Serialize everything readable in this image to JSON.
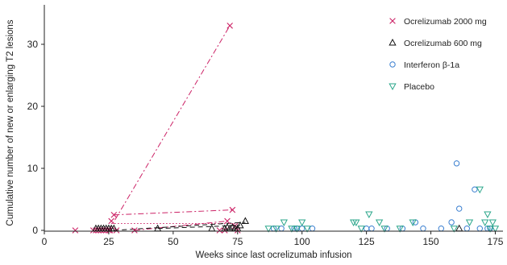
{
  "chart_data": {
    "type": "scatter",
    "title": "",
    "xlabel": "Weeks since last ocrelizumab infusion",
    "ylabel": "Cumulative number of new or enlarging T2 lesions",
    "xlim": [
      0,
      180
    ],
    "ylim": [
      0,
      34
    ],
    "xticks": [
      0,
      25,
      50,
      75,
      100,
      125,
      150,
      175
    ],
    "yticks": [
      0,
      10,
      20,
      30
    ],
    "x_tick_labels": [
      "0",
      "25",
      "50",
      "75",
      "100",
      "125",
      "150",
      "175"
    ],
    "y_tick_labels": [
      "0",
      "10",
      "20",
      "30"
    ],
    "grid": false,
    "legend_position": "top-right",
    "colors": {
      "ocr2000": "#cc2266",
      "ocr600": "#111111",
      "ifn": "#3a7fd0",
      "placebo": "#2aa68a"
    },
    "series": [
      {
        "name": "Ocrelizumab 2000 mg",
        "key": "ocr2000",
        "marker": "x",
        "points": [
          {
            "x": 12,
            "y": 0
          },
          {
            "x": 19,
            "y": 0
          },
          {
            "x": 20,
            "y": 0
          },
          {
            "x": 21,
            "y": 0
          },
          {
            "x": 22,
            "y": 0
          },
          {
            "x": 23,
            "y": 0
          },
          {
            "x": 24,
            "y": 0
          },
          {
            "x": 25,
            "y": 0
          },
          {
            "x": 25.5,
            "y": 0
          },
          {
            "x": 26,
            "y": 1.5
          },
          {
            "x": 27,
            "y": 2.5
          },
          {
            "x": 28,
            "y": 0
          },
          {
            "x": 35,
            "y": 0
          },
          {
            "x": 68,
            "y": 0
          },
          {
            "x": 70,
            "y": 0
          },
          {
            "x": 71,
            "y": 1.5
          },
          {
            "x": 72,
            "y": 33
          },
          {
            "x": 73,
            "y": 3.3
          },
          {
            "x": 74,
            "y": 0.7
          },
          {
            "x": 75,
            "y": 0
          }
        ],
        "lines": [
          {
            "style": "dashdot",
            "points": [
              {
                "x": 25,
                "y": 0
              },
              {
                "x": 72,
                "y": 33
              }
            ]
          },
          {
            "style": "dashdot",
            "points": [
              {
                "x": 27,
                "y": 2.5
              },
              {
                "x": 73,
                "y": 3.3
              }
            ]
          },
          {
            "style": "dotted",
            "points": [
              {
                "x": 26,
                "y": 1.1
              },
              {
                "x": 74,
                "y": 1.1
              }
            ]
          },
          {
            "style": "dashdot",
            "points": [
              {
                "x": 35,
                "y": 0
              },
              {
                "x": 71,
                "y": 1.5
              }
            ]
          }
        ]
      },
      {
        "name": "Ocrelizumab 600 mg",
        "key": "ocr600",
        "marker": "triangle-up",
        "points": [
          {
            "x": 20,
            "y": 0.3
          },
          {
            "x": 21,
            "y": 0.3
          },
          {
            "x": 22,
            "y": 0.3
          },
          {
            "x": 23,
            "y": 0.3
          },
          {
            "x": 24,
            "y": 0.3
          },
          {
            "x": 25,
            "y": 0.3
          },
          {
            "x": 26,
            "y": 0.3
          },
          {
            "x": 27,
            "y": 0.3
          },
          {
            "x": 44,
            "y": 0.3
          },
          {
            "x": 65,
            "y": 0.3
          },
          {
            "x": 70,
            "y": 0.3
          },
          {
            "x": 71,
            "y": 0.5
          },
          {
            "x": 72,
            "y": 0.3
          },
          {
            "x": 73,
            "y": 0.5
          },
          {
            "x": 74,
            "y": 0.3
          },
          {
            "x": 75,
            "y": 0.3
          },
          {
            "x": 76,
            "y": 0.8
          },
          {
            "x": 78,
            "y": 1.5
          },
          {
            "x": 161,
            "y": 0.3
          }
        ],
        "lines": [
          {
            "style": "dashed",
            "points": [
              {
                "x": 27,
                "y": 0
              },
              {
                "x": 78,
                "y": 1.3
              }
            ]
          },
          {
            "style": "dashed",
            "points": [
              {
                "x": 44,
                "y": 0.3
              },
              {
                "x": 76,
                "y": 0.8
              }
            ]
          }
        ]
      },
      {
        "name": "Interferon β-1a",
        "key": "ifn",
        "marker": "circle",
        "points": [
          {
            "x": 89,
            "y": 0.3
          },
          {
            "x": 92,
            "y": 0.3
          },
          {
            "x": 97,
            "y": 0.3
          },
          {
            "x": 98,
            "y": 0.3
          },
          {
            "x": 100,
            "y": 0.3
          },
          {
            "x": 104,
            "y": 0.3
          },
          {
            "x": 125,
            "y": 0.3
          },
          {
            "x": 127,
            "y": 0.3
          },
          {
            "x": 133,
            "y": 0.3
          },
          {
            "x": 139,
            "y": 0.3
          },
          {
            "x": 144,
            "y": 1.3
          },
          {
            "x": 147,
            "y": 0.3
          },
          {
            "x": 154,
            "y": 0.3
          },
          {
            "x": 158,
            "y": 1.3
          },
          {
            "x": 160,
            "y": 10.8
          },
          {
            "x": 161,
            "y": 3.5
          },
          {
            "x": 164,
            "y": 0.3
          },
          {
            "x": 167,
            "y": 6.6
          },
          {
            "x": 169,
            "y": 0.3
          },
          {
            "x": 172,
            "y": 0.3
          },
          {
            "x": 173,
            "y": 0.3
          }
        ],
        "lines": []
      },
      {
        "name": "Placebo",
        "key": "placebo",
        "marker": "triangle-down",
        "points": [
          {
            "x": 87,
            "y": 0.3
          },
          {
            "x": 90,
            "y": 0.3
          },
          {
            "x": 93,
            "y": 1.3
          },
          {
            "x": 96,
            "y": 0.3
          },
          {
            "x": 98,
            "y": 0.3
          },
          {
            "x": 100,
            "y": 1.3
          },
          {
            "x": 102,
            "y": 0.3
          },
          {
            "x": 120,
            "y": 1.3
          },
          {
            "x": 121,
            "y": 1.3
          },
          {
            "x": 123,
            "y": 0.3
          },
          {
            "x": 126,
            "y": 2.6
          },
          {
            "x": 130,
            "y": 1.3
          },
          {
            "x": 132,
            "y": 0.3
          },
          {
            "x": 138,
            "y": 0.3
          },
          {
            "x": 143,
            "y": 1.3
          },
          {
            "x": 159,
            "y": 0.3
          },
          {
            "x": 165,
            "y": 1.3
          },
          {
            "x": 169,
            "y": 6.6
          },
          {
            "x": 171,
            "y": 1.3
          },
          {
            "x": 172,
            "y": 2.6
          },
          {
            "x": 173,
            "y": 0.3
          },
          {
            "x": 174,
            "y": 1.3
          },
          {
            "x": 175,
            "y": 0.3
          }
        ],
        "lines": []
      }
    ]
  }
}
